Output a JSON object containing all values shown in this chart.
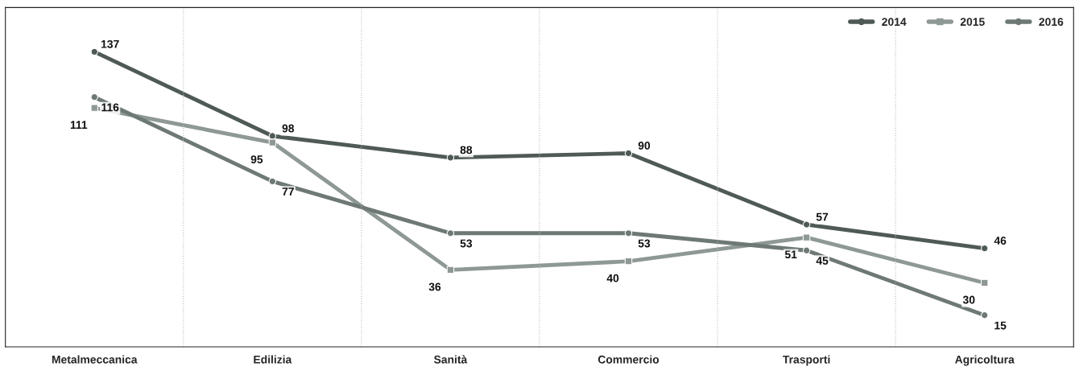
{
  "chart_data": {
    "type": "line",
    "categories": [
      "Metalmeccanica",
      "Edilizia",
      "Sanità",
      "Commercio",
      "Trasporti",
      "Agricoltura"
    ],
    "series": [
      {
        "name": "2014",
        "color": "#4f5a56",
        "marker": "circle",
        "values": [
          137,
          98,
          88,
          90,
          57,
          46
        ]
      },
      {
        "name": "2015",
        "color": "#8e9894",
        "marker": "square",
        "values": [
          111,
          95,
          36,
          40,
          51,
          30
        ]
      },
      {
        "name": "2016",
        "color": "#6e7975",
        "marker": "circle",
        "values": [
          116,
          77,
          53,
          53,
          45,
          15
        ]
      }
    ],
    "data_labels": true,
    "grid": "x",
    "legend": "top right",
    "tick_labels": "x"
  }
}
